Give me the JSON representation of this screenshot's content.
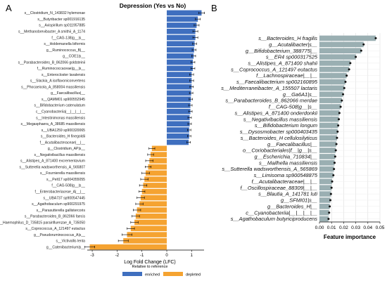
{
  "panels": [
    {
      "letter": "A"
    },
    {
      "letter": "B"
    }
  ],
  "chart_data": [
    {
      "type": "bar",
      "orientation": "horizontal",
      "title": "Depression (Yes vs No)",
      "xlabel": "Log Fold Change (LFC)",
      "xlim": [
        -3.2,
        1.5
      ],
      "xticks": [
        -3,
        -2,
        -1,
        0,
        1
      ],
      "grid": false,
      "error_bars": true,
      "legend": {
        "title": "Relative to reference",
        "position": "bottom-center",
        "entries": [
          {
            "name": "enriched",
            "color": "#3f6fbf"
          },
          {
            "name": "depleted",
            "color": "#f5a331"
          }
        ]
      },
      "categories": [
        "s__Clostridium_N_143832 hylemonae",
        "s__Butyribacter sp001916135",
        "s__Avispirillum sp011957885",
        "s__Methanobrevibacter_A smithii_A_1174",
        "f__CAG-138|g__|s__",
        "s__Holdemanella biformis",
        "g__Ruminococcus_B|__",
        "g__COE1|s__",
        "s__Parabacteroides_B_862066 goldsteinii",
        "f__Ruminococcaceae|g__|s__",
        "s__Enterocloster lavalensis",
        "s__Slackia_A isoflavoniconvertens",
        "s__Phocaeicola_A_858004 massiliensis",
        "g__Faecalibacillus|__",
        "s__QAMM01 sp900552945",
        "s__Bifidobacterium catenulatum",
        "c__Cyanobacteriia|__|__|__|__",
        "s__Intestinimonas massiliensis",
        "s__Megasphaera_A_38685 massiliensis",
        "s__UBA1259 sp900320065",
        "s__Bacteroides_H finegoldii",
        "f__Acutalibacteraceae|__|__",
        "g__Clostridium_AP|s__",
        "s__Negativibacillus massiliensis",
        "s__Alistipes_A_871400 excrementavium",
        "s__Sutterella wadsworthensis_A_565807",
        "s__Fournierella massiliensis",
        "s__Pelt17 sp004355055",
        "f__CAG-508|g__|s__",
        "f__Enterobacteriaceae_A|__|__",
        "s__UBA737 sp900547445",
        "s__Agathobaculum sp900291975",
        "s__Parasutterella gallistercoris",
        "s__Parabacteroides_B_862066 faecis",
        "s__Haemophilus_D_735815 parainfluenzae_A_735050",
        "s__Coprococcus_A_121497 eutactus",
        "g__Pseudoruminococcus_A|s__",
        "s__Victivallis lenta",
        "g__Catenibacterium|s__"
      ],
      "values": [
        1.4,
        1.25,
        1.2,
        1.15,
        1.15,
        1.12,
        1.1,
        1.08,
        1.05,
        1.05,
        1.0,
        1.0,
        1.0,
        0.98,
        0.97,
        0.95,
        0.95,
        0.92,
        0.92,
        0.9,
        0.9,
        0.88,
        -0.6,
        -0.65,
        -0.7,
        -0.75,
        -0.85,
        -0.9,
        -0.95,
        -1.0,
        -1.05,
        -1.1,
        -1.2,
        -1.25,
        -1.3,
        -1.45,
        -1.6,
        -1.75,
        -3.1
      ],
      "errors": [
        0.12,
        0.1,
        0.1,
        0.1,
        0.1,
        0.08,
        0.08,
        0.08,
        0.08,
        0.08,
        0.08,
        0.08,
        0.07,
        0.07,
        0.07,
        0.07,
        0.07,
        0.07,
        0.07,
        0.07,
        0.07,
        0.07,
        0.12,
        0.12,
        0.15,
        0.12,
        0.15,
        0.15,
        0.15,
        0.12,
        0.15,
        0.15,
        0.15,
        0.15,
        0.15,
        0.15,
        0.2,
        0.2,
        0.2
      ]
    },
    {
      "type": "bar",
      "orientation": "horizontal",
      "xlabel": "Feature importance",
      "xlim": [
        0,
        0.05
      ],
      "xticks": [
        "0.00",
        "0.01",
        "0.02",
        "0.03",
        "0.04",
        "0.05"
      ],
      "grid": true,
      "bar_color": "#9aafb2",
      "categories": [
        "s__Bacteroides_H fragilis",
        "g__Acutalibacter|s__",
        "g__Bifidobacterium_388775|__",
        "s__ER4 sp000317525",
        "s__Alistipes_A_871400 shahii",
        "s__Coprococcus_A_121497 eutactus",
        "f__Lachnospiraceae|__|__",
        "s__Faecalibacterium sp002160895",
        "s__Mediterraneibacter_A_155507 lactaris",
        "g__Ga6A1|s__",
        "s__Parabacteroides_B_862066 merdae",
        "f__CAG-508|g__|s__",
        "s__Alistipes_A_871400 onderdonkii",
        "s__Negativibacillus massiliensis",
        "s__Bifidobacterium longum",
        "s__Dysosmobacter sp000403435",
        "s__Bacteroides_H cellulosilyticus",
        "g__Faecalibacillus|__",
        "o__Coriobacteriales|f__|g__|s__",
        "g__Escherichia_710834|__",
        "s__Mailhella massiliensis",
        "s__Sutterella wadsworthensis_A_565869",
        "s__Limisoma sp900548875",
        "f__Acutalibacteraceae|__|__",
        "f__Oscillospiraceae_88309|__|__",
        "s__Blautia_A_141781 luti",
        "g__SFMI01|s__",
        "g__Bacteroides_H|__",
        "c__Cyanobacteriia|__|__|__|__",
        "s__Agathobaculum butyriciproducens"
      ],
      "values": [
        0.0465,
        0.0365,
        0.0345,
        0.03,
        0.0255,
        0.0245,
        0.0225,
        0.0215,
        0.0205,
        0.0195,
        0.0185,
        0.0175,
        0.0165,
        0.016,
        0.0155,
        0.015,
        0.0145,
        0.014,
        0.0135,
        0.013,
        0.0125,
        0.012,
        0.0115,
        0.0105,
        0.01,
        0.0095,
        0.009,
        0.0085,
        0.008,
        0.0075
      ],
      "errors": [
        0.0008,
        0.0008,
        0.0008,
        0.0008,
        0.0008,
        0.0008,
        0.0008,
        0.0008,
        0.0008,
        0.0008,
        0.0008,
        0.0008,
        0.0008,
        0.0008,
        0.0008,
        0.0008,
        0.0008,
        0.0008,
        0.0008,
        0.0008,
        0.0008,
        0.0008,
        0.0008,
        0.0008,
        0.0008,
        0.0008,
        0.0008,
        0.0008,
        0.0008,
        0.0008
      ]
    }
  ]
}
